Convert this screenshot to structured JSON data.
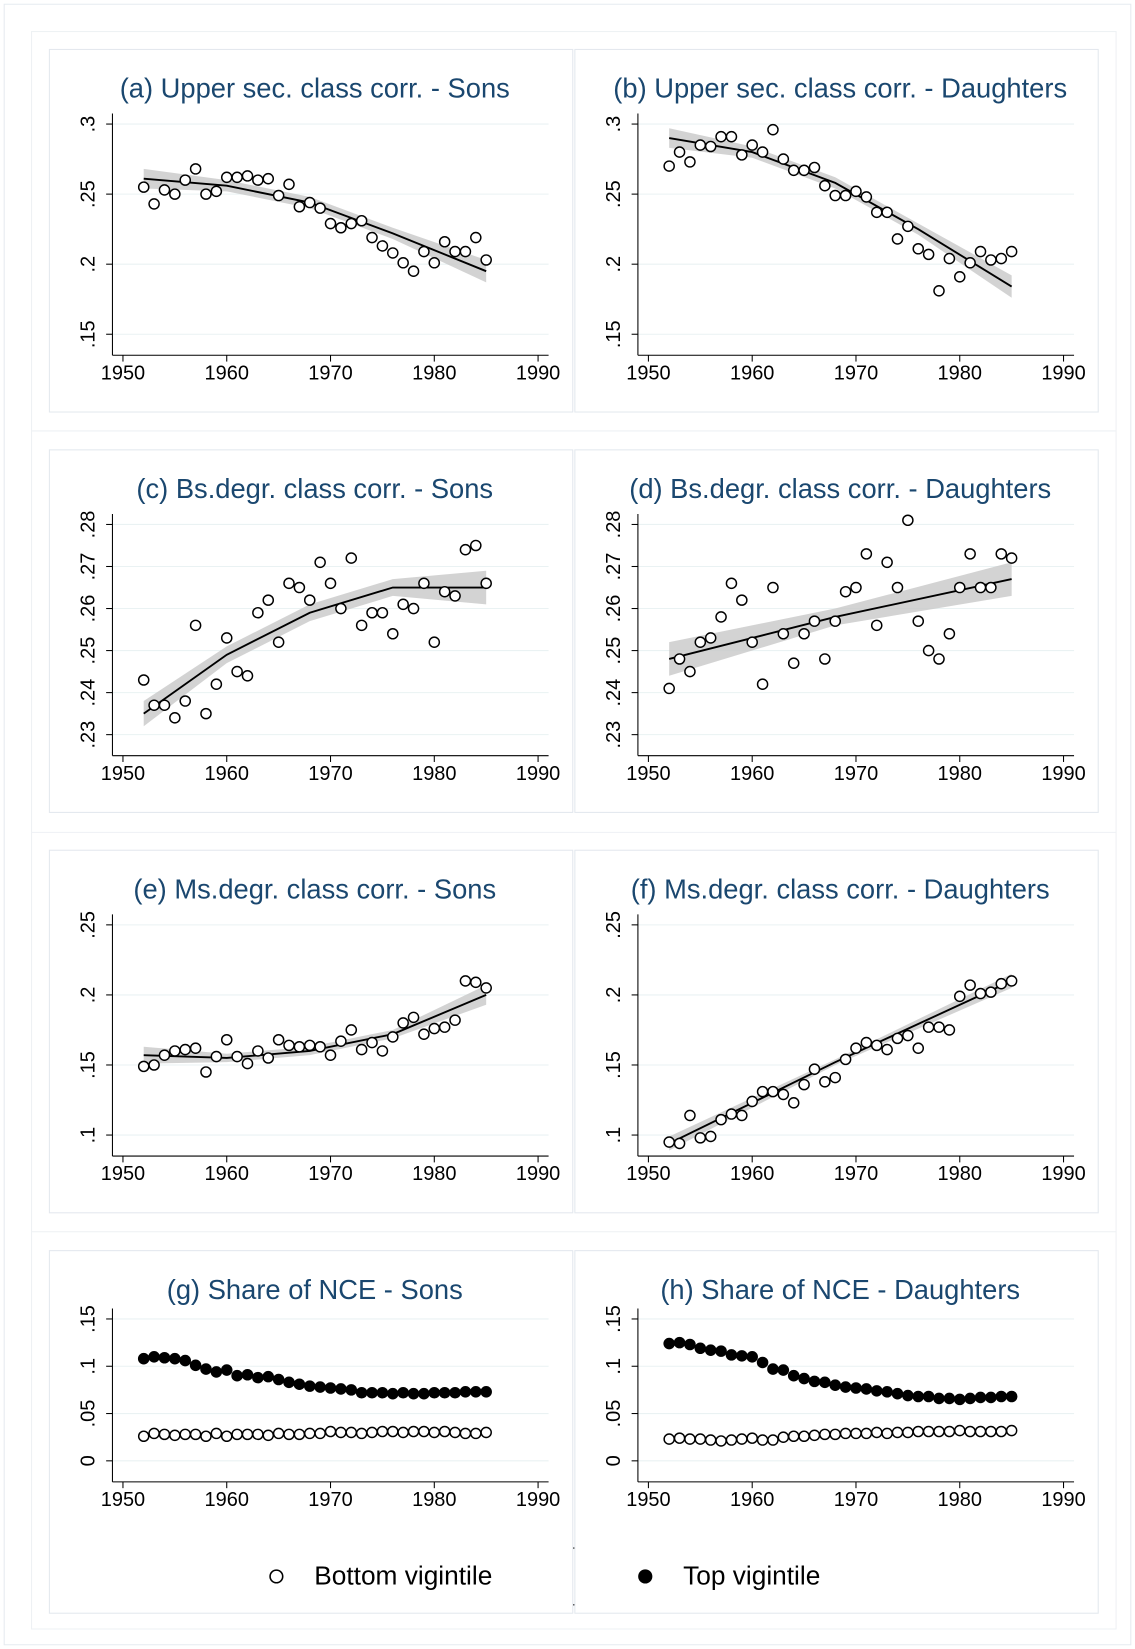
{
  "chart_data": [
    {
      "type": "scatter",
      "title": "(a) Upper sec. class corr. - Sons",
      "x": [
        1952,
        1953,
        1954,
        1955,
        1956,
        1957,
        1958,
        1959,
        1960,
        1961,
        1962,
        1963,
        1964,
        1965,
        1966,
        1967,
        1968,
        1969,
        1970,
        1971,
        1972,
        1973,
        1974,
        1975,
        1976,
        1977,
        1978,
        1979,
        1980,
        1981,
        1982,
        1983,
        1984,
        1985
      ],
      "values": [
        0.255,
        0.243,
        0.253,
        0.25,
        0.26,
        0.268,
        0.25,
        0.252,
        0.262,
        0.262,
        0.263,
        0.26,
        0.261,
        0.249,
        0.257,
        0.241,
        0.244,
        0.24,
        0.229,
        0.226,
        0.229,
        0.231,
        0.219,
        0.213,
        0.208,
        0.201,
        0.195,
        0.209,
        0.201,
        0.216,
        0.209,
        0.209,
        0.219,
        0.203
      ],
      "fit": {
        "x": [
          1952,
          1960,
          1968,
          1976,
          1985
        ],
        "values": [
          0.261,
          0.256,
          0.244,
          0.222,
          0.195
        ],
        "lower": [
          0.254,
          0.252,
          0.24,
          0.218,
          0.187
        ],
        "upper": [
          0.268,
          0.26,
          0.248,
          0.226,
          0.203
        ]
      },
      "xlim": [
        1950,
        1990
      ],
      "xticks": [
        1950,
        1960,
        1970,
        1980,
        1990
      ],
      "ylim": [
        0.15,
        0.3
      ],
      "yticks": [
        {
          "value": 0.15,
          "label": ".15"
        },
        {
          "value": 0.2,
          "label": ".2"
        },
        {
          "value": 0.25,
          "label": ".25"
        },
        {
          "value": 0.3,
          "label": ".3"
        }
      ],
      "grid": true
    },
    {
      "type": "scatter",
      "title": "(b) Upper sec. class corr. - Daughters",
      "x": [
        1952,
        1953,
        1954,
        1955,
        1956,
        1957,
        1958,
        1959,
        1960,
        1961,
        1962,
        1963,
        1964,
        1965,
        1966,
        1967,
        1968,
        1969,
        1970,
        1971,
        1972,
        1973,
        1974,
        1975,
        1976,
        1977,
        1978,
        1979,
        1980,
        1981,
        1982,
        1983,
        1984,
        1985
      ],
      "values": [
        0.27,
        0.28,
        0.273,
        0.285,
        0.284,
        0.291,
        0.291,
        0.278,
        0.285,
        0.28,
        0.296,
        0.275,
        0.267,
        0.267,
        0.269,
        0.256,
        0.249,
        0.249,
        0.252,
        0.248,
        0.237,
        0.237,
        0.218,
        0.227,
        0.211,
        0.207,
        0.181,
        0.204,
        0.191,
        0.201,
        0.209,
        0.203,
        0.204,
        0.209
      ],
      "fit": {
        "x": [
          1952,
          1960,
          1968,
          1976,
          1985
        ],
        "values": [
          0.29,
          0.28,
          0.258,
          0.225,
          0.184
        ],
        "lower": [
          0.283,
          0.276,
          0.254,
          0.221,
          0.176
        ],
        "upper": [
          0.297,
          0.284,
          0.262,
          0.229,
          0.192
        ]
      },
      "xlim": [
        1950,
        1990
      ],
      "xticks": [
        1950,
        1960,
        1970,
        1980,
        1990
      ],
      "ylim": [
        0.15,
        0.3
      ],
      "yticks": [
        {
          "value": 0.15,
          "label": ".15"
        },
        {
          "value": 0.2,
          "label": ".2"
        },
        {
          "value": 0.25,
          "label": ".25"
        },
        {
          "value": 0.3,
          "label": ".3"
        }
      ],
      "grid": true
    },
    {
      "type": "scatter",
      "title": "(c) Bs.degr. class corr. - Sons",
      "x": [
        1952,
        1953,
        1954,
        1955,
        1956,
        1957,
        1958,
        1959,
        1960,
        1961,
        1962,
        1963,
        1964,
        1965,
        1966,
        1967,
        1968,
        1969,
        1970,
        1971,
        1972,
        1973,
        1974,
        1975,
        1976,
        1977,
        1978,
        1979,
        1980,
        1981,
        1982,
        1983,
        1984,
        1985
      ],
      "values": [
        0.243,
        0.237,
        0.237,
        0.234,
        0.238,
        0.256,
        0.235,
        0.242,
        0.253,
        0.245,
        0.244,
        0.259,
        0.262,
        0.252,
        0.266,
        0.265,
        0.262,
        0.271,
        0.266,
        0.26,
        0.272,
        0.256,
        0.259,
        0.259,
        0.254,
        0.261,
        0.26,
        0.266,
        0.252,
        0.264,
        0.263,
        0.274,
        0.275,
        0.266
      ],
      "fit": {
        "x": [
          1952,
          1960,
          1968,
          1976,
          1985
        ],
        "values": [
          0.235,
          0.249,
          0.259,
          0.265,
          0.265
        ],
        "lower": [
          0.232,
          0.247,
          0.257,
          0.263,
          0.261
        ],
        "upper": [
          0.238,
          0.251,
          0.261,
          0.267,
          0.269
        ]
      },
      "xlim": [
        1950,
        1990
      ],
      "xticks": [
        1950,
        1960,
        1970,
        1980,
        1990
      ],
      "ylim": [
        0.23,
        0.28
      ],
      "yticks": [
        {
          "value": 0.23,
          "label": ".23"
        },
        {
          "value": 0.24,
          "label": ".24"
        },
        {
          "value": 0.25,
          "label": ".25"
        },
        {
          "value": 0.26,
          "label": ".26"
        },
        {
          "value": 0.27,
          "label": ".27"
        },
        {
          "value": 0.28,
          "label": ".28"
        }
      ],
      "grid": true
    },
    {
      "type": "scatter",
      "title": "(d) Bs.degr. class corr. - Daughters",
      "x": [
        1952,
        1953,
        1954,
        1955,
        1956,
        1957,
        1958,
        1959,
        1960,
        1961,
        1962,
        1963,
        1964,
        1965,
        1966,
        1967,
        1968,
        1969,
        1970,
        1971,
        1972,
        1973,
        1974,
        1975,
        1976,
        1977,
        1978,
        1979,
        1980,
        1981,
        1982,
        1983,
        1984,
        1985
      ],
      "values": [
        0.241,
        0.248,
        0.245,
        0.252,
        0.253,
        0.258,
        0.266,
        0.262,
        0.252,
        0.242,
        0.265,
        0.254,
        0.247,
        0.254,
        0.257,
        0.248,
        0.257,
        0.264,
        0.265,
        0.273,
        0.256,
        0.271,
        0.265,
        0.281,
        0.257,
        0.25,
        0.248,
        0.254,
        0.265,
        0.273,
        0.265,
        0.265,
        0.273,
        0.272
      ],
      "fit": {
        "x": [
          1952,
          1968,
          1985
        ],
        "values": [
          0.248,
          0.258,
          0.267
        ],
        "lower": [
          0.244,
          0.256,
          0.263
        ],
        "upper": [
          0.252,
          0.26,
          0.271
        ]
      },
      "xlim": [
        1950,
        1990
      ],
      "xticks": [
        1950,
        1960,
        1970,
        1980,
        1990
      ],
      "ylim": [
        0.23,
        0.28
      ],
      "yticks": [
        {
          "value": 0.23,
          "label": ".23"
        },
        {
          "value": 0.24,
          "label": ".24"
        },
        {
          "value": 0.25,
          "label": ".25"
        },
        {
          "value": 0.26,
          "label": ".26"
        },
        {
          "value": 0.27,
          "label": ".27"
        },
        {
          "value": 0.28,
          "label": ".28"
        }
      ],
      "grid": true
    },
    {
      "type": "scatter",
      "title": "(e) Ms.degr. class corr. - Sons",
      "x": [
        1952,
        1953,
        1954,
        1955,
        1956,
        1957,
        1958,
        1959,
        1960,
        1961,
        1962,
        1963,
        1964,
        1965,
        1966,
        1967,
        1968,
        1969,
        1970,
        1971,
        1972,
        1973,
        1974,
        1975,
        1976,
        1977,
        1978,
        1979,
        1980,
        1981,
        1982,
        1983,
        1984,
        1985
      ],
      "values": [
        0.149,
        0.15,
        0.157,
        0.16,
        0.161,
        0.162,
        0.145,
        0.156,
        0.168,
        0.156,
        0.151,
        0.16,
        0.155,
        0.168,
        0.164,
        0.163,
        0.164,
        0.163,
        0.157,
        0.167,
        0.175,
        0.161,
        0.166,
        0.16,
        0.17,
        0.18,
        0.184,
        0.172,
        0.176,
        0.177,
        0.182,
        0.21,
        0.209,
        0.205
      ],
      "fit": {
        "x": [
          1952,
          1960,
          1968,
          1976,
          1985
        ],
        "values": [
          0.157,
          0.155,
          0.16,
          0.172,
          0.2
        ],
        "lower": [
          0.151,
          0.152,
          0.157,
          0.169,
          0.193
        ],
        "upper": [
          0.163,
          0.158,
          0.163,
          0.175,
          0.207
        ]
      },
      "xlim": [
        1950,
        1990
      ],
      "xticks": [
        1950,
        1960,
        1970,
        1980,
        1990
      ],
      "ylim": [
        0.1,
        0.25
      ],
      "yticks": [
        {
          "value": 0.1,
          "label": ".1"
        },
        {
          "value": 0.15,
          "label": ".15"
        },
        {
          "value": 0.2,
          "label": ".2"
        },
        {
          "value": 0.25,
          "label": ".25"
        }
      ],
      "grid": true
    },
    {
      "type": "scatter",
      "title": "(f) Ms.degr. class corr. - Daughters",
      "x": [
        1952,
        1953,
        1954,
        1955,
        1956,
        1957,
        1958,
        1959,
        1960,
        1961,
        1962,
        1963,
        1964,
        1965,
        1966,
        1967,
        1968,
        1969,
        1970,
        1971,
        1972,
        1973,
        1974,
        1975,
        1976,
        1977,
        1978,
        1979,
        1980,
        1981,
        1982,
        1983,
        1984,
        1985
      ],
      "values": [
        0.095,
        0.094,
        0.114,
        0.098,
        0.099,
        0.111,
        0.115,
        0.114,
        0.124,
        0.131,
        0.131,
        0.129,
        0.123,
        0.136,
        0.147,
        0.138,
        0.141,
        0.154,
        0.162,
        0.166,
        0.164,
        0.161,
        0.169,
        0.171,
        0.162,
        0.177,
        0.177,
        0.175,
        0.199,
        0.207,
        0.201,
        0.202,
        0.208,
        0.21
      ],
      "fit": {
        "x": [
          1952,
          1968,
          1985
        ],
        "values": [
          0.094,
          0.152,
          0.21
        ],
        "lower": [
          0.089,
          0.15,
          0.205
        ],
        "upper": [
          0.099,
          0.154,
          0.215
        ]
      },
      "xlim": [
        1950,
        1990
      ],
      "xticks": [
        1950,
        1960,
        1970,
        1980,
        1990
      ],
      "ylim": [
        0.1,
        0.25
      ],
      "yticks": [
        {
          "value": 0.1,
          "label": ".1"
        },
        {
          "value": 0.15,
          "label": ".15"
        },
        {
          "value": 0.2,
          "label": ".2"
        },
        {
          "value": 0.25,
          "label": ".25"
        }
      ],
      "grid": true
    },
    {
      "type": "scatter",
      "title": "(g) Share of NCE - Sons",
      "x": [
        1952,
        1953,
        1954,
        1955,
        1956,
        1957,
        1958,
        1959,
        1960,
        1961,
        1962,
        1963,
        1964,
        1965,
        1966,
        1967,
        1968,
        1969,
        1970,
        1971,
        1972,
        1973,
        1974,
        1975,
        1976,
        1977,
        1978,
        1979,
        1980,
        1981,
        1982,
        1983,
        1984,
        1985
      ],
      "series": [
        {
          "name": "Bottom vigintile",
          "marker": "hollow",
          "color": "#000000",
          "values": [
            0.026,
            0.029,
            0.028,
            0.027,
            0.028,
            0.028,
            0.026,
            0.029,
            0.026,
            0.028,
            0.028,
            0.028,
            0.027,
            0.029,
            0.028,
            0.028,
            0.029,
            0.029,
            0.031,
            0.03,
            0.03,
            0.029,
            0.03,
            0.031,
            0.031,
            0.03,
            0.031,
            0.031,
            0.03,
            0.031,
            0.03,
            0.029,
            0.029,
            0.03
          ]
        },
        {
          "name": "Top vigintile",
          "marker": "filled",
          "color": "#000000",
          "values": [
            0.108,
            0.11,
            0.109,
            0.108,
            0.106,
            0.101,
            0.097,
            0.094,
            0.096,
            0.09,
            0.091,
            0.088,
            0.089,
            0.086,
            0.083,
            0.081,
            0.079,
            0.078,
            0.077,
            0.076,
            0.075,
            0.072,
            0.072,
            0.072,
            0.071,
            0.072,
            0.071,
            0.071,
            0.072,
            0.072,
            0.072,
            0.073,
            0.073,
            0.073
          ]
        }
      ],
      "xlim": [
        1950,
        1990
      ],
      "xticks": [
        1950,
        1960,
        1970,
        1980,
        1990
      ],
      "ylim": [
        0,
        0.15
      ],
      "yticks": [
        0,
        {
          "value": 0.05,
          "label": ".05"
        },
        {
          "value": 0.1,
          "label": ".1"
        },
        {
          "value": 0.15,
          "label": ".15"
        }
      ],
      "grid": true
    },
    {
      "type": "scatter",
      "title": "(h) Share of NCE - Daughters",
      "x": [
        1952,
        1953,
        1954,
        1955,
        1956,
        1957,
        1958,
        1959,
        1960,
        1961,
        1962,
        1963,
        1964,
        1965,
        1966,
        1967,
        1968,
        1969,
        1970,
        1971,
        1972,
        1973,
        1974,
        1975,
        1976,
        1977,
        1978,
        1979,
        1980,
        1981,
        1982,
        1983,
        1984,
        1985
      ],
      "series": [
        {
          "name": "Bottom vigintile",
          "marker": "hollow",
          "color": "#000000",
          "values": [
            0.023,
            0.024,
            0.023,
            0.023,
            0.022,
            0.021,
            0.022,
            0.023,
            0.024,
            0.022,
            0.022,
            0.025,
            0.026,
            0.026,
            0.027,
            0.028,
            0.028,
            0.029,
            0.029,
            0.029,
            0.03,
            0.029,
            0.03,
            0.03,
            0.031,
            0.031,
            0.031,
            0.031,
            0.032,
            0.031,
            0.031,
            0.031,
            0.031,
            0.032
          ]
        },
        {
          "name": "Top vigintile",
          "marker": "filled",
          "color": "#000000",
          "values": [
            0.124,
            0.125,
            0.123,
            0.119,
            0.117,
            0.116,
            0.112,
            0.111,
            0.11,
            0.104,
            0.097,
            0.096,
            0.09,
            0.087,
            0.084,
            0.083,
            0.08,
            0.078,
            0.077,
            0.076,
            0.074,
            0.073,
            0.071,
            0.069,
            0.068,
            0.068,
            0.066,
            0.066,
            0.065,
            0.066,
            0.067,
            0.067,
            0.068,
            0.068
          ]
        }
      ],
      "xlim": [
        1950,
        1990
      ],
      "xticks": [
        1950,
        1960,
        1970,
        1980,
        1990
      ],
      "ylim": [
        0,
        0.15
      ],
      "yticks": [
        0,
        {
          "value": 0.05,
          "label": ".05"
        },
        {
          "value": 0.1,
          "label": ".1"
        },
        {
          "value": 0.15,
          "label": ".15"
        }
      ],
      "grid": true
    }
  ]
}
